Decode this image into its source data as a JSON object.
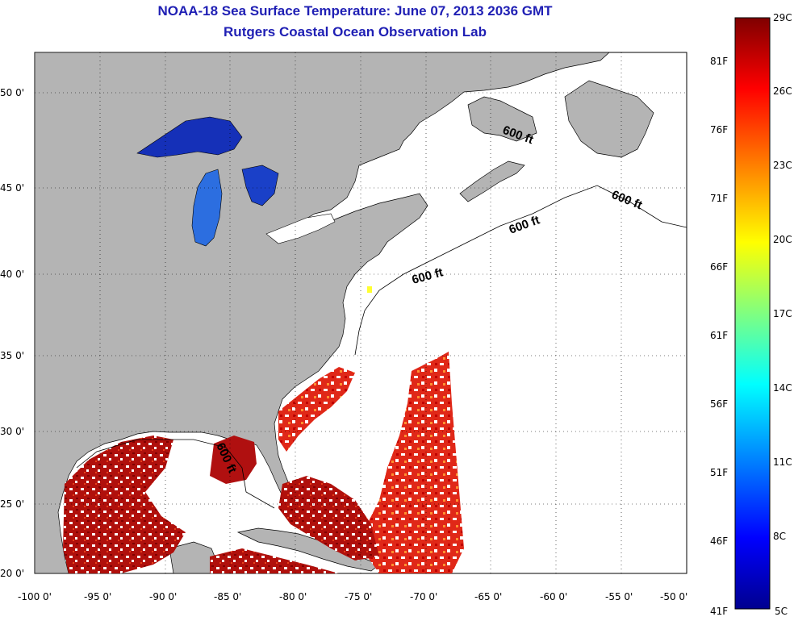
{
  "header": {
    "title": "NOAA-18 Sea Surface Temperature:  June 07, 2013 2036 GMT",
    "subtitle": "Rutgers Coastal Ocean Observation Lab"
  },
  "map": {
    "land_color": "#b4b4b4",
    "water_no_data_color": "#ffffff",
    "lat_ticks": [
      "20 0'",
      "25 0'",
      "30 0'",
      "35 0'",
      "40 0'",
      "45 0'",
      "50 0'"
    ],
    "lon_ticks": [
      "-100 0'",
      "-95 0'",
      "-90 0'",
      "-85 0'",
      "-80 0'",
      "-75 0'",
      "-70 0'",
      "-65 0'",
      "-60 0'",
      "-55 0'",
      "-50 0'"
    ],
    "contour_labels": [
      "600 ft",
      "600 ft",
      "600 ft",
      "600 ft",
      "600 ft"
    ]
  },
  "colorbar": {
    "top_label": "29C",
    "bottom_left_label": "41F",
    "bottom_right_label": "5C",
    "celsius_labels": [
      "26C",
      "23C",
      "20C",
      "17C",
      "14C",
      "11C",
      "8C"
    ],
    "fahrenheit_labels": [
      "81F",
      "76F",
      "71F",
      "66F",
      "61F",
      "56F",
      "51F",
      "46F"
    ],
    "colors": [
      "#7f0000",
      "#ff0000",
      "#ff8000",
      "#ffff00",
      "#80ff80",
      "#00ffff",
      "#0080ff",
      "#0000ff",
      "#00008f"
    ]
  }
}
